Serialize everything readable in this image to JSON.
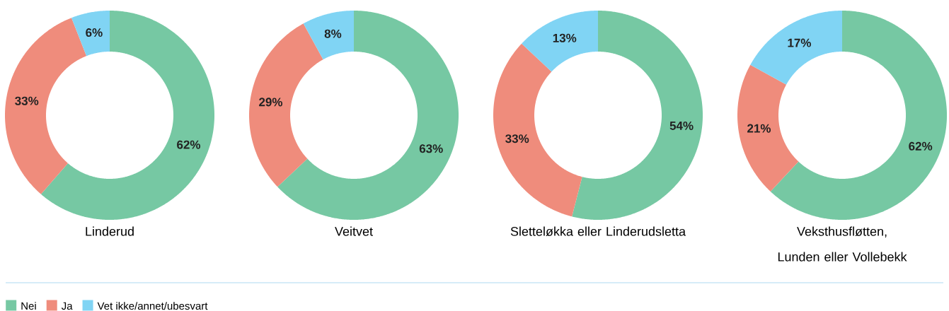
{
  "chart_data": [
    {
      "type": "donut",
      "title": "Linderud",
      "categories": [
        "Nei",
        "Ja",
        "Vet ikke/annet/ubesvart"
      ],
      "values": [
        62,
        33,
        6
      ],
      "value_labels": [
        "62%",
        "33%",
        "6%"
      ],
      "colors": [
        "#76c8a3",
        "#ef8c7c",
        "#80d4f4"
      ],
      "legend": "bottom"
    },
    {
      "type": "donut",
      "title": "Veitvet",
      "categories": [
        null,
        null,
        null
      ],
      "values": [
        63,
        29,
        8
      ],
      "value_labels": [
        "63%",
        "29%",
        "8%"
      ],
      "colors": [
        "#76c8a3",
        "#ef8c7c",
        "#80d4f4"
      ]
    },
    {
      "type": "donut",
      "title": "Sletteløkka eller Linderudsletta",
      "categories": [
        null,
        null,
        null
      ],
      "values": [
        54,
        33,
        13
      ],
      "value_labels": [
        "54%",
        "33%",
        "13%"
      ],
      "colors": [
        "#76c8a3",
        "#ef8c7c",
        "#80d4f4"
      ]
    },
    {
      "type": "donut",
      "title": "Veksthusfløtten, Lunden eller Vollebekk",
      "categories": [
        null,
        null,
        null
      ],
      "values": [
        62,
        21,
        17
      ],
      "value_labels": [
        "62%",
        "21%",
        "17%"
      ],
      "colors": [
        "#76c8a3",
        "#ef8c7c",
        "#80d4f4"
      ]
    }
  ]
}
